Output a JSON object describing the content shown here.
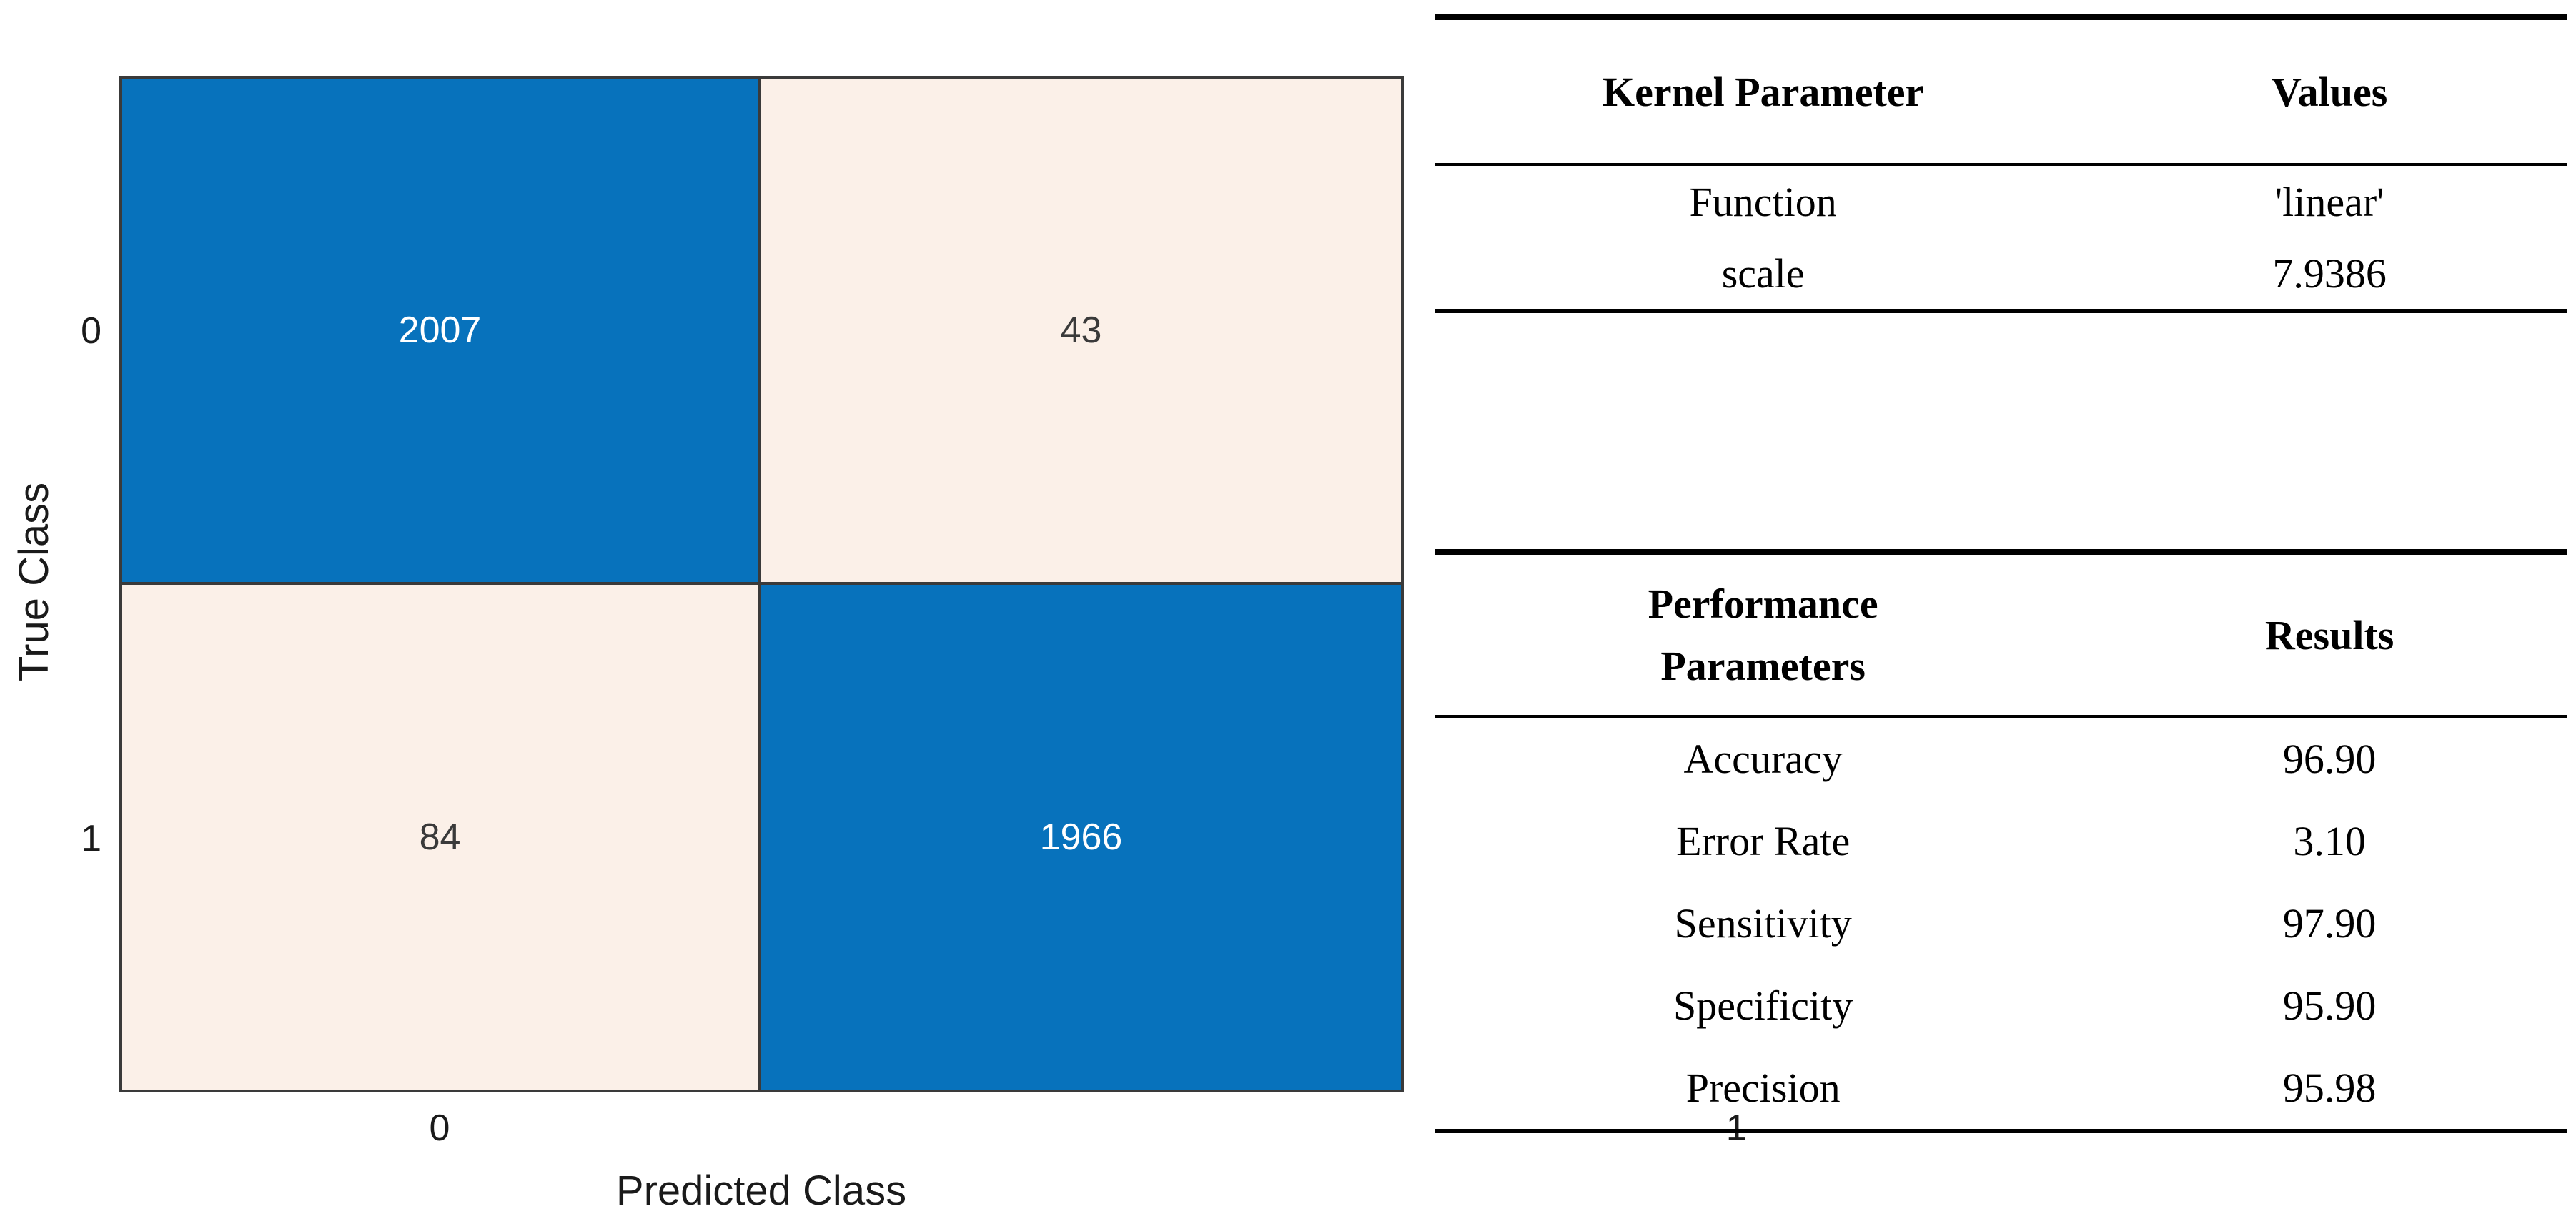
{
  "chart_data": [
    {
      "type": "heatmap",
      "title": "",
      "xlabel": "Predicted Class",
      "ylabel": "True Class",
      "x_categories": [
        "0",
        "1"
      ],
      "y_categories": [
        "0",
        "1"
      ],
      "values": [
        [
          2007,
          43
        ],
        [
          84,
          1966
        ]
      ],
      "cell_colors": [
        [
          "#0772BC",
          "#FBF0E8"
        ],
        [
          "#FBF0E8",
          "#0772BC"
        ]
      ],
      "cell_text_colors": [
        [
          "#FFFFFF",
          "#3A3A3A"
        ],
        [
          "#3A3A3A",
          "#FFFFFF"
        ]
      ],
      "grid_color": "#3A3A3A",
      "legend": "none",
      "grid": "cell-borders-only"
    },
    {
      "type": "table",
      "columns": [
        "Kernel Parameter",
        "Values"
      ],
      "rows": [
        [
          "Function",
          "'linear'"
        ],
        [
          "scale",
          "7.9386"
        ]
      ]
    },
    {
      "type": "table",
      "columns": [
        "Performance Parameters",
        "Results"
      ],
      "rows": [
        [
          "Accuracy",
          "96.90"
        ],
        [
          "Error Rate",
          "3.10"
        ],
        [
          "Sensitivity",
          "97.90"
        ],
        [
          "Specificity",
          "95.90"
        ],
        [
          "Precision",
          "95.98"
        ]
      ]
    }
  ],
  "colors": {
    "diagonal_cell_blue": "#0772BC",
    "offdiagonal_cell_pink": "#FBF0E8",
    "matrix_border_gray": "#3A3A3A",
    "axis_text": "#1A1A1A",
    "table_text": "#000000",
    "background": "#FFFFFF"
  }
}
